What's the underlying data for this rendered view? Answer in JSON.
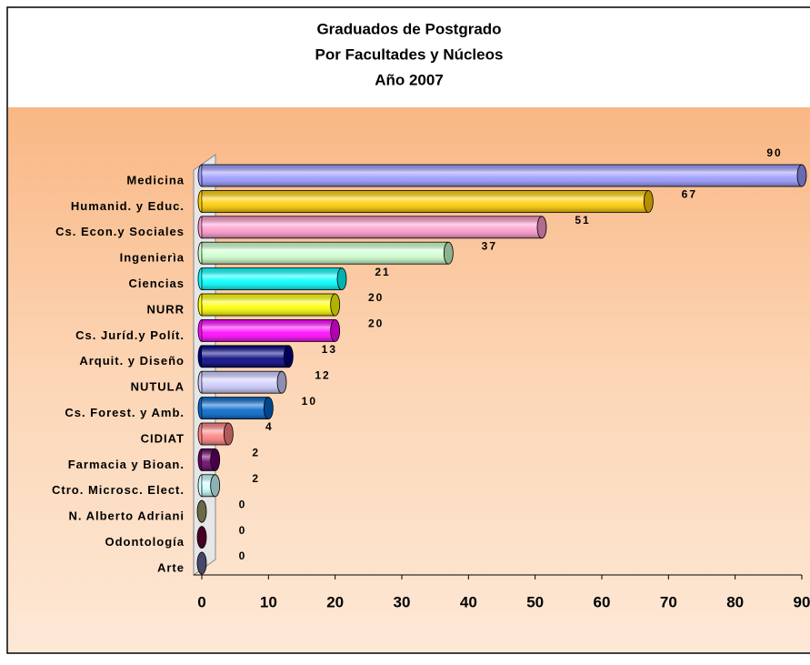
{
  "chart_data": {
    "type": "bar",
    "orientation": "horizontal",
    "title": [
      "Graduados de Postgrado",
      "Por Facultades y Núcleos",
      "Año 2007"
    ],
    "categories": [
      "Medicina",
      "Humanid. y Educ.",
      "Cs. Econ.y Sociales",
      "Ingenierìa",
      "Ciencias",
      "NURR",
      "Cs. Juríd.y Polít.",
      "Arquit. y Diseño",
      "NUTULA",
      "Cs. Forest. y Amb.",
      "CIDIAT",
      "Farmacia y Bioan.",
      "Ctro. Microsc. Elect.",
      "N. Alberto Adriani",
      "Odontología",
      "Arte"
    ],
    "values": [
      90,
      67,
      51,
      37,
      21,
      20,
      20,
      13,
      12,
      10,
      4,
      2,
      2,
      0,
      0,
      0
    ],
    "colors": [
      "#9999ff",
      "#ffcc00",
      "#ff99cc",
      "#ccffcc",
      "#00ffff",
      "#ffff00",
      "#ff00ff",
      "#000080",
      "#ccccff",
      "#0066cc",
      "#ff8080",
      "#660066",
      "#ccffff",
      "#999966",
      "#660033",
      "#666699"
    ],
    "xlim": [
      0,
      90
    ],
    "xticks": [
      0,
      10,
      20,
      30,
      40,
      50,
      60,
      70,
      80,
      90
    ]
  }
}
